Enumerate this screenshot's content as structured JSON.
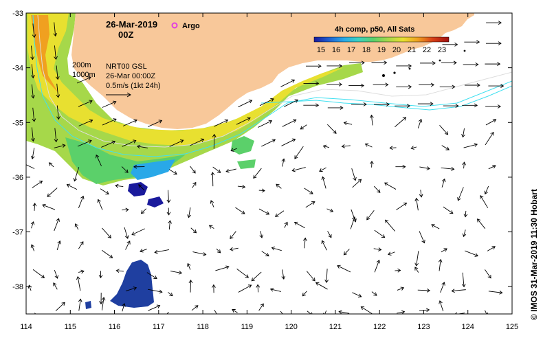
{
  "title": {
    "date": "26-Mar-2019",
    "hour": "00Z"
  },
  "legend": {
    "argo_label": "Argo",
    "argo_color": "#e040e0"
  },
  "colorbar": {
    "title": "4h comp, p50, All Sats",
    "min": 15,
    "max": 23,
    "ticks": [
      "15",
      "16",
      "17",
      "18",
      "19",
      "20",
      "21",
      "22",
      "23"
    ],
    "colors": [
      "#1a1a9c",
      "#1f5fd0",
      "#29a8e8",
      "#3cd2c0",
      "#5bd06a",
      "#a6d84a",
      "#e8e030",
      "#f0a020",
      "#d84018",
      "#a01010"
    ]
  },
  "info": {
    "isobath_shallow": "200m",
    "isobath_deep": "1000m",
    "product": "NRT00 GSL",
    "timestamp": "26-Mar 00:00Z",
    "scale": "0.5m/s (1kt 24h)"
  },
  "axes": {
    "x_ticks": [
      "114",
      "115",
      "116",
      "117",
      "118",
      "119",
      "120",
      "121",
      "122",
      "123",
      "124",
      "125"
    ],
    "y_ticks": [
      "-33",
      "-34",
      "-35",
      "-36",
      "-37",
      "-38"
    ],
    "lon_range": [
      114,
      125
    ],
    "lat_range": [
      -38.5,
      -33
    ]
  },
  "credit": "© IMOS 31-Mar-2019 11:30 Hobart",
  "colors": {
    "land": "#f8c89a",
    "ocean": "#ffffff",
    "arrow": "#000000",
    "isobath": "#40e0f0"
  }
}
